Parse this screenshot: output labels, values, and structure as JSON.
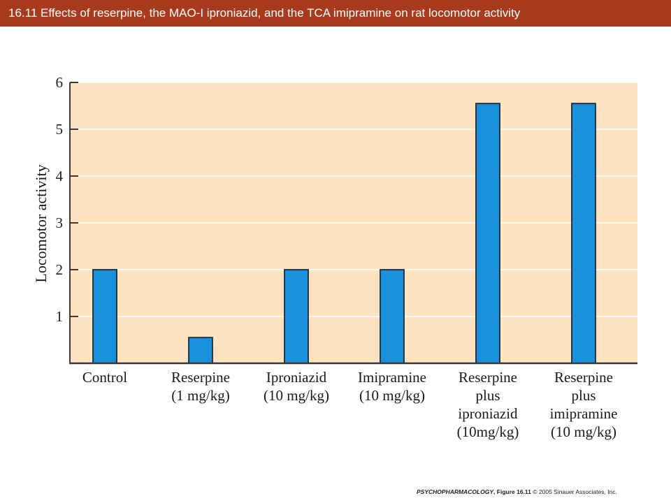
{
  "slide_title": "16.11  Effects of reserpine, the MAO-I iproniazid, and the TCA imipramine on rat locomotor activity",
  "credit": {
    "book": "PSYCHOPHARMACOLOGY",
    "figure": ", Figure 16.11",
    "rest": "  © 2005 Sinauer Associates, Inc."
  },
  "colors": {
    "title_bar": "#a83a1e",
    "plot_background": "#fde3c0",
    "bar_fill": "#1a8fdc",
    "bar_stroke": "#1b2a3a",
    "axis": "#3a3a3a",
    "grid": "#ffffff"
  },
  "chart_data": {
    "type": "bar",
    "title": "",
    "ylabel": "Locomotor activity",
    "xlabel": "",
    "ylim": [
      0,
      6
    ],
    "yticks": [
      1,
      2,
      3,
      4,
      5,
      6
    ],
    "grid": true,
    "categories": [
      [
        "Control"
      ],
      [
        "Reserpine",
        "(1 mg/kg)"
      ],
      [
        "Iproniazid",
        "(10 mg/kg)"
      ],
      [
        "Imipramine",
        "(10 mg/kg)"
      ],
      [
        "Reserpine",
        "plus",
        "iproniazid",
        "(10mg/kg)"
      ],
      [
        "Reserpine",
        "plus",
        "imipramine",
        "(10 mg/kg)"
      ]
    ],
    "values": [
      2.0,
      0.55,
      2.0,
      2.0,
      5.55,
      5.55
    ]
  }
}
